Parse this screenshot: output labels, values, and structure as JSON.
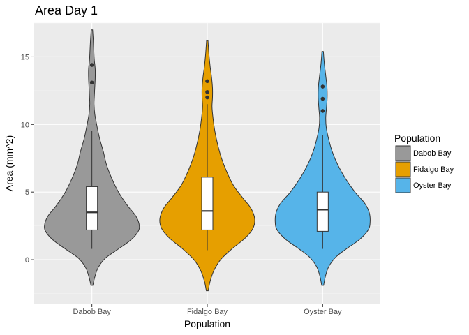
{
  "chart_data": {
    "type": "violin",
    "title": "Area Day 1",
    "xlabel": "Population",
    "ylabel": "Area (mm^2)",
    "ylim": [
      -3.3,
      17.5
    ],
    "yticks": [
      0,
      5,
      10,
      15
    ],
    "grid": true,
    "legend": {
      "title": "Population",
      "position": "right",
      "items": [
        {
          "label": "Dabob Bay",
          "color": "#999999"
        },
        {
          "label": "Fidalgo Bay",
          "color": "#E69F00"
        },
        {
          "label": "Oyster Bay",
          "color": "#56B4E9"
        }
      ]
    },
    "categories": [
      "Dabob Bay",
      "Fidalgo Bay",
      "Oyster Bay"
    ],
    "series": [
      {
        "name": "Dabob Bay",
        "color": "#999999",
        "violin": {
          "min": -1.9,
          "max": 17.0,
          "profile": [
            [
              -1.9,
              0.02
            ],
            [
              -1.3,
              0.06
            ],
            [
              -0.6,
              0.13
            ],
            [
              0.1,
              0.28
            ],
            [
              0.7,
              0.52
            ],
            [
              1.4,
              0.8
            ],
            [
              2.0,
              0.96
            ],
            [
              2.5,
              1.0
            ],
            [
              3.2,
              0.93
            ],
            [
              4.0,
              0.75
            ],
            [
              5.0,
              0.56
            ],
            [
              6.0,
              0.42
            ],
            [
              7.0,
              0.31
            ],
            [
              8.0,
              0.24
            ],
            [
              9.0,
              0.16
            ],
            [
              10.0,
              0.1
            ],
            [
              10.8,
              0.06
            ],
            [
              11.5,
              0.045
            ],
            [
              12.0,
              0.05
            ],
            [
              12.7,
              0.06
            ],
            [
              13.4,
              0.07
            ],
            [
              14.1,
              0.07
            ],
            [
              14.8,
              0.05
            ],
            [
              15.5,
              0.04
            ],
            [
              16.2,
              0.03
            ],
            [
              17.0,
              0.015
            ]
          ]
        },
        "box": {
          "whisker_low": 0.8,
          "q1": 2.2,
          "median": 3.5,
          "q3": 5.4,
          "whisker_high": 9.5
        },
        "outliers": [
          13.1,
          14.4
        ]
      },
      {
        "name": "Fidalgo Bay",
        "color": "#E69F00",
        "violin": {
          "min": -2.3,
          "max": 16.2,
          "profile": [
            [
              -2.3,
              0.02
            ],
            [
              -1.6,
              0.06
            ],
            [
              -0.8,
              0.14
            ],
            [
              0.0,
              0.28
            ],
            [
              0.8,
              0.52
            ],
            [
              1.6,
              0.8
            ],
            [
              2.3,
              0.96
            ],
            [
              3.0,
              1.0
            ],
            [
              3.8,
              0.92
            ],
            [
              4.6,
              0.74
            ],
            [
              5.5,
              0.55
            ],
            [
              6.5,
              0.41
            ],
            [
              7.5,
              0.3
            ],
            [
              8.5,
              0.22
            ],
            [
              9.5,
              0.16
            ],
            [
              10.5,
              0.12
            ],
            [
              11.3,
              0.1
            ],
            [
              12.0,
              0.11
            ],
            [
              12.7,
              0.11
            ],
            [
              13.5,
              0.09
            ],
            [
              14.3,
              0.06
            ],
            [
              15.2,
              0.035
            ],
            [
              16.2,
              0.015
            ]
          ]
        },
        "box": {
          "whisker_low": 0.7,
          "q1": 2.2,
          "median": 3.6,
          "q3": 6.1,
          "whisker_high": 11.5
        },
        "outliers": [
          12.0,
          12.4,
          13.2
        ]
      },
      {
        "name": "Oyster Bay",
        "color": "#56B4E9",
        "violin": {
          "min": -1.9,
          "max": 15.4,
          "profile": [
            [
              -1.9,
              0.02
            ],
            [
              -1.2,
              0.06
            ],
            [
              -0.5,
              0.13
            ],
            [
              0.2,
              0.28
            ],
            [
              0.8,
              0.5
            ],
            [
              1.5,
              0.78
            ],
            [
              2.2,
              0.96
            ],
            [
              2.8,
              1.0
            ],
            [
              3.5,
              0.98
            ],
            [
              4.2,
              0.88
            ],
            [
              5.0,
              0.68
            ],
            [
              6.0,
              0.48
            ],
            [
              7.0,
              0.32
            ],
            [
              8.0,
              0.2
            ],
            [
              9.0,
              0.12
            ],
            [
              9.8,
              0.075
            ],
            [
              10.5,
              0.065
            ],
            [
              11.2,
              0.08
            ],
            [
              12.0,
              0.095
            ],
            [
              12.8,
              0.09
            ],
            [
              13.6,
              0.065
            ],
            [
              14.5,
              0.035
            ],
            [
              15.4,
              0.015
            ]
          ]
        },
        "box": {
          "whisker_low": 0.8,
          "q1": 2.1,
          "median": 3.7,
          "q3": 5.0,
          "whisker_high": 9.2
        },
        "outliers": [
          11.0,
          11.9,
          12.8
        ]
      }
    ]
  }
}
